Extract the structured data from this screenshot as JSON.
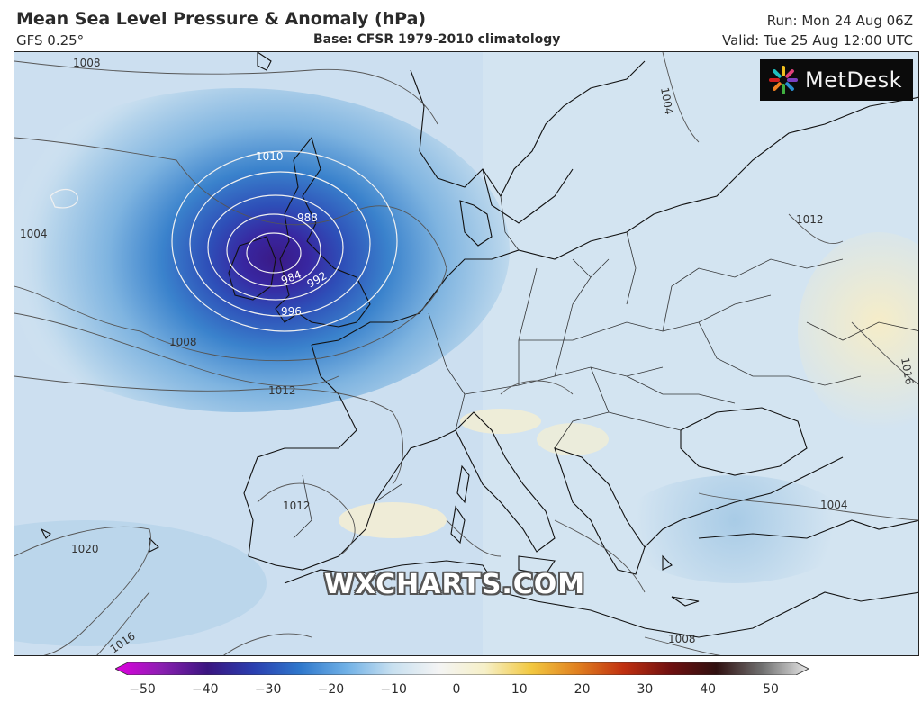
{
  "header": {
    "title": "Mean Sea Level Pressure & Anomaly (hPa)",
    "model": "GFS 0.25°",
    "base": "Base: CFSR 1979-2010 climatology",
    "run": "Run: Mon 24 Aug 06Z",
    "valid": "Valid: Tue 25 Aug 12:00 UTC"
  },
  "logo": {
    "text": "MetDesk",
    "icon": "metdesk-star-icon"
  },
  "watermark": "WXCHARTS.COM",
  "isobar_labels": {
    "l1008_nw": "1008",
    "l1010": "1010",
    "l988": "988",
    "l984": "984",
    "l992": "992",
    "l996": "996",
    "l1004_w": "1004",
    "l1008_sw": "1008",
    "l1012_bay": "1012",
    "l1012_iberia": "1012",
    "l1020": "1020",
    "l1016": "1016",
    "l1012_east": "1012",
    "l1004_n": "1004",
    "l1004_e": "1004",
    "l1008_s": "1008",
    "l1016_e": "1016"
  },
  "colorbar": {
    "ticks": [
      "−50",
      "−40",
      "−30",
      "−20",
      "−10",
      "0",
      "10",
      "20",
      "30",
      "40",
      "50"
    ],
    "colors": [
      "#e000e0",
      "#8a1fb0",
      "#3a1580",
      "#2a3fb0",
      "#2f78cc",
      "#6fb0e6",
      "#c8e0f0",
      "#f4f4f4",
      "#f6f0c8",
      "#f2c840",
      "#e08020",
      "#c03010",
      "#701010",
      "#301010",
      "#707070",
      "#e8e8e8"
    ]
  },
  "map_colors": {
    "ocean_light": "#d7e7f2",
    "land_light": "#dfeaf3",
    "anomaly_neg": "#9fc8e8",
    "anomaly_deep": "#2e57b8",
    "low_core": "#3a1a86",
    "anomaly_pos": "#f7efcf"
  }
}
